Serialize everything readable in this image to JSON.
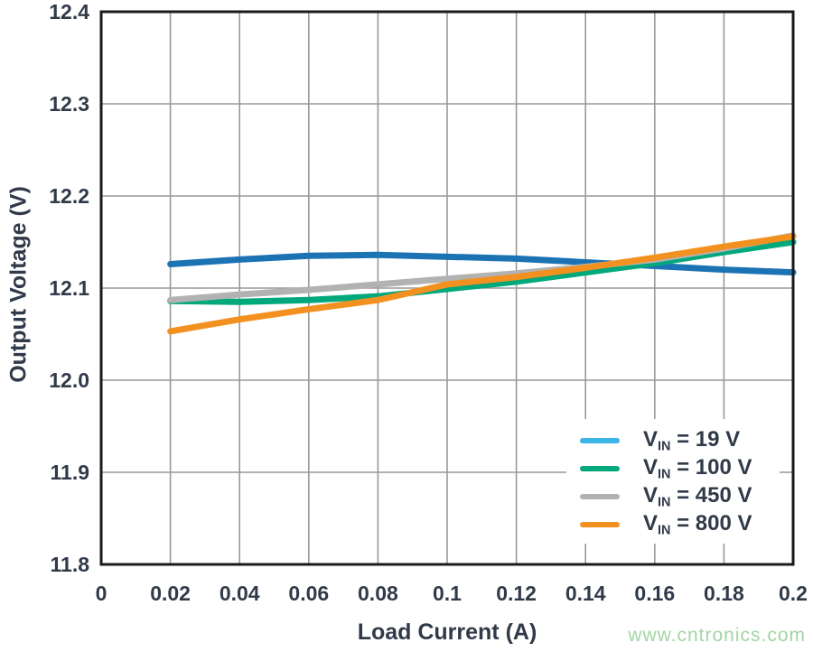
{
  "watermark": {
    "text": "www.cntronics.com",
    "color": "#A3D5A3"
  },
  "chart_data": {
    "type": "line",
    "title": "",
    "xlabel": "Load Current (A)",
    "ylabel": "Output Voltage (V)",
    "xlim": [
      0,
      0.2
    ],
    "ylim": [
      11.8,
      12.4
    ],
    "x_ticks": [
      0,
      0.02,
      0.04,
      0.06,
      0.08,
      0.1,
      0.12,
      0.14,
      0.16,
      0.18,
      0.2
    ],
    "x_tick_labels": [
      "0",
      "0.02",
      "0.04",
      "0.06",
      "0.08",
      "0.1",
      "0.12",
      "0.14",
      "0.16",
      "0.18",
      "0.2"
    ],
    "y_ticks": [
      11.8,
      11.9,
      12.0,
      12.1,
      12.2,
      12.3,
      12.4
    ],
    "y_tick_labels": [
      "11.8",
      "11.9",
      "12.0",
      "12.1",
      "12.2",
      "12.3",
      "12.4"
    ],
    "grid": true,
    "grid_color": "#999999",
    "border_color": "#1A1A1A",
    "text_color": "#313A49",
    "legend_position": "inside bottom-right",
    "x": [
      0.02,
      0.04,
      0.06,
      0.08,
      0.1,
      0.12,
      0.14,
      0.16,
      0.18,
      0.2
    ],
    "series": [
      {
        "id": "vin-19",
        "label_v": "V",
        "label_sub": "IN",
        "label_rest": " = 19 V",
        "line_color": "#1C73B4",
        "legend_color": "#3BB5E5",
        "values": [
          12.126,
          12.131,
          12.135,
          12.136,
          12.134,
          12.132,
          12.128,
          12.124,
          12.12,
          12.117
        ]
      },
      {
        "id": "vin-100",
        "label_v": "V",
        "label_sub": "IN",
        "label_rest": " = 100 V",
        "line_color": "#00A87C",
        "legend_color": "#00A87C",
        "values": [
          12.086,
          12.085,
          12.087,
          12.091,
          12.099,
          12.107,
          12.117,
          12.127,
          12.139,
          12.15
        ]
      },
      {
        "id": "vin-450",
        "label_v": "V",
        "label_sub": "IN",
        "label_rest": " = 450 V",
        "line_color": "#B2B2B2",
        "legend_color": "#B2B2B2",
        "values": [
          12.087,
          12.093,
          12.098,
          12.104,
          12.11,
          12.116,
          12.123,
          12.131,
          12.143,
          12.157
        ]
      },
      {
        "id": "vin-800",
        "label_v": "V",
        "label_sub": "IN",
        "label_rest": " = 800 V",
        "line_color": "#F39120",
        "legend_color": "#F39120",
        "values": [
          12.053,
          12.066,
          12.077,
          12.087,
          12.104,
          12.112,
          12.122,
          12.133,
          12.145,
          12.156
        ]
      }
    ]
  }
}
